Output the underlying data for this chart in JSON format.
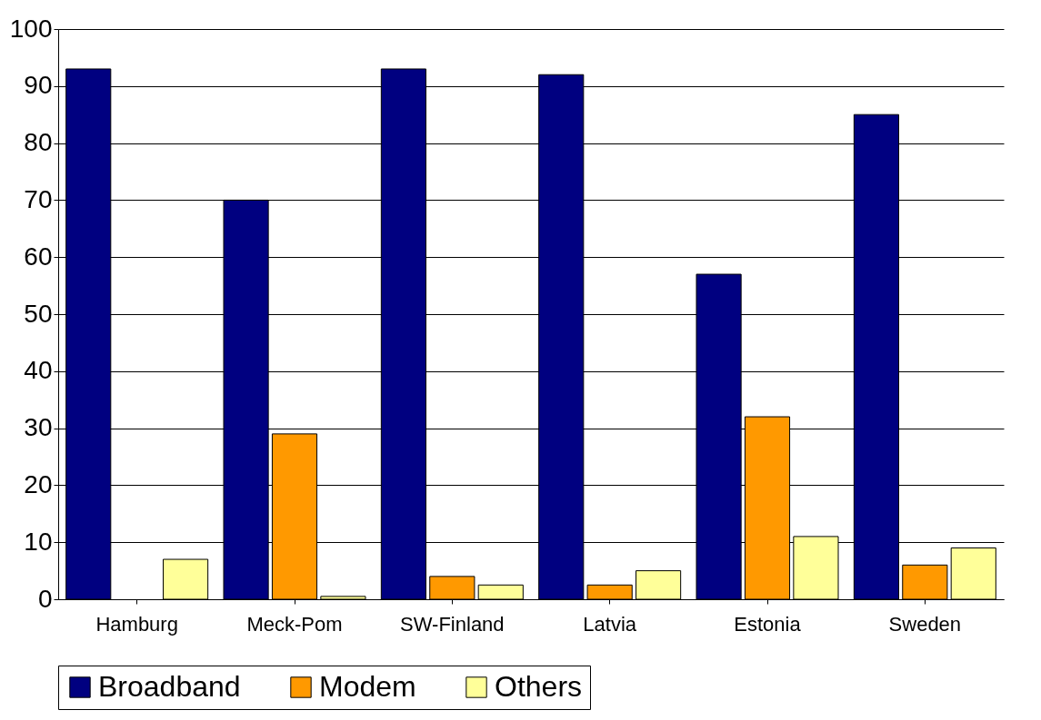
{
  "chart_data": {
    "type": "bar",
    "categories": [
      "Hamburg",
      "Meck-Pom",
      "SW-Finland",
      "Latvia",
      "Estonia",
      "Sweden"
    ],
    "series": [
      {
        "name": "Broadband",
        "color": "#000080",
        "values": [
          93,
          70,
          93,
          92,
          57,
          85
        ]
      },
      {
        "name": "Modem",
        "color": "#ff9900",
        "values": [
          null,
          29,
          4,
          2.5,
          32,
          6
        ]
      },
      {
        "name": "Others",
        "color": "#ffff99",
        "values": [
          7,
          0.5,
          2.5,
          5,
          11,
          9
        ]
      }
    ],
    "ylim": [
      0,
      100
    ],
    "yticks": [
      0,
      10,
      20,
      30,
      40,
      50,
      60,
      70,
      80,
      90,
      100
    ],
    "grid": "y",
    "legend": "bottom"
  }
}
